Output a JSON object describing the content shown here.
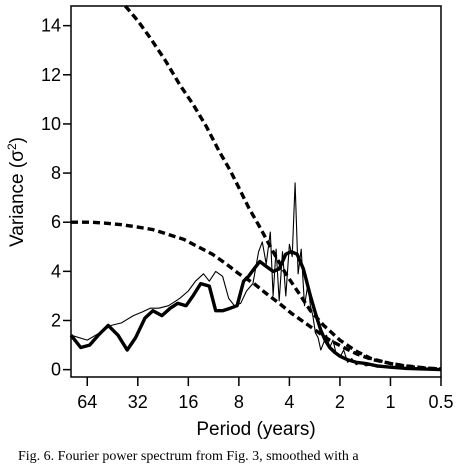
{
  "caption": "Fig. 6. Fourier power spectrum from Fig. 3, smoothed with a",
  "chart_data": {
    "type": "line",
    "title": "",
    "xlabel": "Period (years)",
    "ylabel": "Variance (σ",
    "ylabel_superscript": "2",
    "ylabel_suffix": ")",
    "x_scale": "log2-reversed",
    "xlim": [
      80,
      0.5
    ],
    "ylim": [
      -0.3,
      14.8
    ],
    "xticks": [
      64,
      32,
      16,
      8,
      4,
      2,
      1,
      0.5
    ],
    "xtick_labels": [
      "64",
      "32",
      "16",
      "8",
      "4",
      "2",
      "1",
      "0.5"
    ],
    "yticks": [
      0,
      2,
      4,
      6,
      8,
      10,
      12,
      14
    ],
    "ytick_labels": [
      "0",
      "2",
      "4",
      "6",
      "8",
      "10",
      "12",
      "14"
    ],
    "grid": false,
    "series": [
      {
        "style": "thin",
        "x": [
          80,
          64,
          54,
          46,
          40,
          34,
          30,
          27,
          24,
          21,
          18,
          16,
          14.5,
          13,
          12,
          11,
          10,
          9.2,
          8.5,
          7.8,
          7.2,
          6.6,
          6.1,
          5.8,
          5.5,
          5.2,
          5,
          4.8,
          4.6,
          4.4,
          4.2,
          4.0,
          3.85,
          3.7,
          3.55,
          3.4,
          3.25,
          3.1,
          3.0,
          2.9,
          2.8,
          2.7,
          2.6,
          2.5,
          2.4,
          2.3,
          2.2,
          2.1,
          2.0,
          1.9,
          1.8,
          1.7,
          1.6,
          1.5,
          1.4,
          1.3,
          1.2,
          1.1,
          1.0,
          0.9,
          0.8,
          0.7,
          0.6,
          0.5
        ],
        "values": [
          1.4,
          1.2,
          1.5,
          1.8,
          1.9,
          2.2,
          2.35,
          2.5,
          2.5,
          2.6,
          2.9,
          3.2,
          3.6,
          3.9,
          3.6,
          4.0,
          3.8,
          2.9,
          2.6,
          2.7,
          3.2,
          3.5,
          4.8,
          5.2,
          4.3,
          5.6,
          3.0,
          4.9,
          2.8,
          4.8,
          3.0,
          5.1,
          4.6,
          7.6,
          3.9,
          4.9,
          2.6,
          3.5,
          2.6,
          2.2,
          1.5,
          1.3,
          0.8,
          1.1,
          1.4,
          0.9,
          1.2,
          0.6,
          0.5,
          0.8,
          0.3,
          0.45,
          0.2,
          0.3,
          0.15,
          0.2,
          0.1,
          0.12,
          0.08,
          0.1,
          0.05,
          0.05,
          0.03,
          0.0
        ]
      },
      {
        "style": "thick",
        "x": [
          80,
          70,
          62,
          55,
          48,
          42,
          37,
          33,
          29,
          26,
          23,
          20.5,
          18.5,
          16.5,
          15,
          13.5,
          12,
          11,
          10,
          9,
          8.2,
          7.5,
          7,
          6.5,
          6,
          5.5,
          5,
          4.6,
          4.2,
          3.9,
          3.6,
          3.3,
          3.0,
          2.8,
          2.6,
          2.45,
          2.3,
          2.15,
          2.0,
          1.8,
          1.6,
          1.4,
          1.2,
          1.0,
          0.8,
          0.65,
          0.5
        ],
        "values": [
          1.4,
          0.9,
          1.0,
          1.4,
          1.8,
          1.4,
          0.8,
          1.3,
          2.1,
          2.4,
          2.2,
          2.5,
          2.7,
          2.6,
          3.0,
          3.5,
          3.4,
          2.4,
          2.4,
          2.5,
          2.6,
          3.6,
          3.8,
          4.1,
          4.4,
          4.2,
          4.0,
          4.1,
          4.7,
          4.8,
          4.7,
          4.1,
          3.0,
          2.3,
          1.6,
          1.2,
          0.9,
          0.7,
          0.55,
          0.4,
          0.3,
          0.25,
          0.15,
          0.1,
          0.05,
          0.03,
          0.0
        ]
      },
      {
        "style": "dashed",
        "x": [
          38,
          32,
          27,
          22,
          18,
          15,
          12.5,
          10.5,
          9,
          8,
          7,
          6,
          5,
          4.2,
          3.5,
          3.0,
          2.5,
          2.0,
          1.6,
          1.3,
          1.0,
          0.8,
          0.6,
          0.5
        ],
        "values": [
          14.8,
          14.2,
          13.5,
          12.6,
          11.6,
          10.8,
          9.9,
          8.9,
          8.1,
          7.4,
          6.6,
          5.8,
          4.8,
          3.9,
          3.1,
          2.4,
          1.8,
          1.2,
          0.75,
          0.45,
          0.25,
          0.13,
          0.05,
          0.02
        ]
      },
      {
        "style": "dashed",
        "x": [
          80,
          60,
          48,
          40,
          32,
          26,
          21,
          17,
          14,
          11.5,
          9.5,
          8,
          6.5,
          5.5,
          4.6,
          3.9,
          3.3,
          2.8,
          2.3,
          1.9,
          1.6,
          1.3,
          1.0,
          0.8,
          0.6,
          0.5
        ],
        "values": [
          6.0,
          6.0,
          5.95,
          5.9,
          5.8,
          5.7,
          5.5,
          5.3,
          5.0,
          4.7,
          4.3,
          3.9,
          3.5,
          3.1,
          2.7,
          2.3,
          1.95,
          1.6,
          1.2,
          0.9,
          0.65,
          0.42,
          0.25,
          0.15,
          0.06,
          0.03
        ]
      }
    ]
  }
}
